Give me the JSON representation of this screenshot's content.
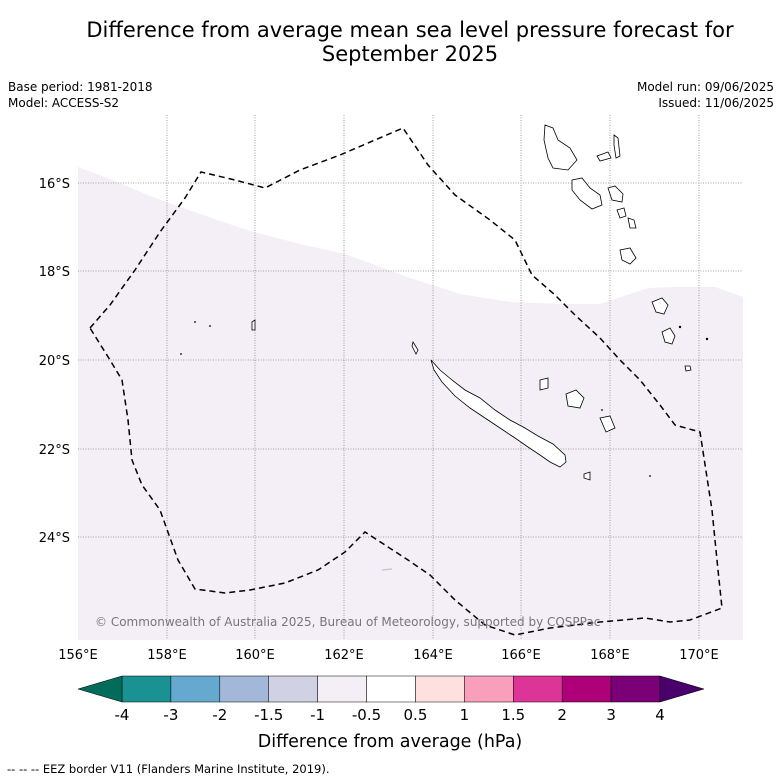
{
  "title_line1": "Difference from average mean sea level pressure forecast for",
  "title_line2": "September 2025",
  "meta_left": {
    "base_period": "Base period: 1981-2018",
    "model": "Model: ACCESS-S2"
  },
  "meta_right": {
    "model_run": "Model run: 09/06/2025",
    "issued": "Issued: 11/06/2025"
  },
  "copyright": "© Commonwealth of Australia 2025, Bureau of Meteorology, supported by COSPPac",
  "lat_labels": [
    "16°S",
    "18°S",
    "20°S",
    "22°S",
    "24°S"
  ],
  "lon_labels": [
    "156°E",
    "158°E",
    "160°E",
    "162°E",
    "164°E",
    "166°E",
    "168°E",
    "170°E"
  ],
  "colorbar": {
    "title": "Difference from average (hPa)",
    "ticks": [
      "-4",
      "-3",
      "-2",
      "-1.5",
      "-1",
      "-0.5",
      "0.5",
      "1",
      "1.5",
      "2",
      "3",
      "4"
    ],
    "colors": [
      "#1a9193",
      "#65a9d0",
      "#a3b7d8",
      "#d0d2e4",
      "#f4eef6",
      "#ffffff",
      "#fee0df",
      "#f99fbc",
      "#dd3498",
      "#ae0179",
      "#7b0078"
    ],
    "under_color": "#016c59",
    "over_color": "#49006a"
  },
  "footnote": "--  --  -- EEZ border V11 (Flanders Marine Institute, 2019)."
}
